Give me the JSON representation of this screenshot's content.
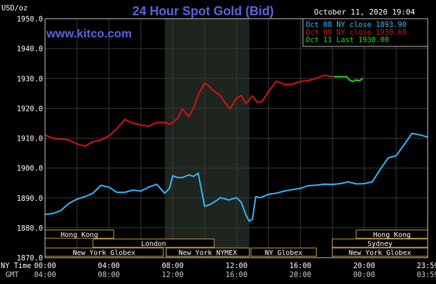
{
  "chart_data": {
    "type": "line",
    "title": "24 Hour Spot Gold (Bid)",
    "source_watermark": "www.kitco.com",
    "ylabel": "USD/oz",
    "datetime": "October 11, 2020 19:04",
    "ylim": [
      1870.0,
      1950.0
    ],
    "y_ticks": [
      "1950.0",
      "1940.0",
      "1930.0",
      "1920.0",
      "1910.0",
      "1900.0",
      "1890.0",
      "1880.0",
      "1870.0"
    ],
    "y_tick_values": [
      1950,
      1940,
      1930,
      1920,
      1910,
      1900,
      1890,
      1880,
      1870
    ],
    "x_row_labels": {
      "ny": "NY Time",
      "gmt": "GMT"
    },
    "x_ticks_ny": [
      "00:00",
      "04:00",
      "08:00",
      "12:00",
      "16:00",
      "20:00",
      "23:59"
    ],
    "x_ticks_gmt": [
      "04:00",
      "08:00",
      "12:00",
      "16:00",
      "20:00",
      "00:00",
      "03:59"
    ],
    "x_tick_hours": [
      0,
      4,
      8,
      12,
      16,
      20,
      23.98
    ],
    "shaded_interval_hours": [
      7.5,
      12.8
    ],
    "grid": true,
    "legend_position": "top-right",
    "series": [
      {
        "name": "Oct 08 NY close 1893.90",
        "color": "#33bbff",
        "x": [
          0,
          0.5,
          1,
          1.5,
          2,
          2.5,
          3,
          3.5,
          4,
          4.5,
          5,
          5.5,
          6,
          6.5,
          7,
          7.5,
          7.8,
          8,
          8.3,
          8.6,
          9,
          9.3,
          9.6,
          10,
          10.3,
          10.6,
          11,
          11.5,
          12,
          12.3,
          12.6,
          12.8,
          13,
          13.2,
          13.5,
          14,
          14.5,
          15,
          15.5,
          16,
          16.5,
          17,
          17.5,
          18,
          18.5,
          19,
          19.5,
          20,
          20.5,
          21,
          21.5,
          22,
          22.5,
          23,
          23.5,
          23.98
        ],
        "y": [
          1884.5,
          1884.8,
          1885.8,
          1888.2,
          1889.6,
          1890.4,
          1891.6,
          1894.2,
          1893.6,
          1891.9,
          1891.9,
          1892.6,
          1892.3,
          1893.6,
          1894.6,
          1891.6,
          1893.2,
          1897.4,
          1896.8,
          1896.8,
          1897.7,
          1897.2,
          1898.3,
          1887.2,
          1887.7,
          1888.6,
          1890.1,
          1889.3,
          1890.1,
          1888.5,
          1884.2,
          1882.2,
          1882.9,
          1890.4,
          1890.1,
          1891.2,
          1891.6,
          1892.3,
          1892.8,
          1893.2,
          1894.1,
          1894.3,
          1894.6,
          1894.5,
          1894.8,
          1895.4,
          1894.7,
          1894.8,
          1895.4,
          1899.5,
          1903.4,
          1904.1,
          1907.8,
          1911.6,
          1911.1,
          1910.4
        ]
      },
      {
        "name": "Oct 09 NY close 1930.60",
        "color": "#e01010",
        "x": [
          0,
          0.5,
          1,
          1.5,
          2,
          2.5,
          3,
          3.5,
          4,
          4.5,
          5,
          5.5,
          6,
          6.5,
          7,
          7.5,
          7.8,
          8,
          8.3,
          8.6,
          9,
          9.3,
          9.6,
          10,
          10.3,
          10.6,
          11,
          11.3,
          11.6,
          12,
          12.3,
          12.6,
          13,
          13.3,
          13.6,
          14,
          14.5,
          15,
          15.5,
          16,
          16.5,
          17,
          17.5,
          18
        ],
        "y": [
          1911.1,
          1910.0,
          1909.7,
          1909.4,
          1908.1,
          1907.3,
          1908.8,
          1909.4,
          1910.8,
          1913.2,
          1916.3,
          1915.0,
          1914.4,
          1914.0,
          1915.3,
          1915.3,
          1914.6,
          1915.3,
          1916.6,
          1919.8,
          1917.2,
          1920.0,
          1924.5,
          1928.5,
          1927.3,
          1925.7,
          1924.2,
          1921.7,
          1919.9,
          1923.4,
          1924.3,
          1921.5,
          1924.2,
          1922.0,
          1922.3,
          1925.6,
          1929.1,
          1928.0,
          1928.1,
          1929.0,
          1929.3,
          1930.1,
          1931.1,
          1930.6
        ]
      },
      {
        "name": "Oct 11 Last 1930.00",
        "color": "#22dd22",
        "x": [
          18.1,
          18.5,
          18.9,
          19.1,
          19.3,
          19.5,
          19.7,
          19.9
        ],
        "y": [
          1930.6,
          1930.6,
          1930.6,
          1929.4,
          1929.0,
          1929.5,
          1929.2,
          1930.0
        ]
      }
    ]
  },
  "sessions": [
    {
      "label": "Hong Kong",
      "row": 0,
      "start": 0.0,
      "end": 4.3
    },
    {
      "label": "London",
      "row": 1,
      "start": 3.0,
      "end": 10.6
    },
    {
      "label": "New York Globex",
      "row": 2,
      "start": 0.0,
      "end": 7.4
    },
    {
      "label": "New York NYMEX",
      "row": 2,
      "start": 7.6,
      "end": 12.8
    },
    {
      "label": "NY Globex",
      "row": 2,
      "start": 12.9,
      "end": 17.0
    },
    {
      "label": "Hong Kong",
      "row": 0,
      "start": 19.5,
      "end": 23.98
    },
    {
      "label": "Sydney",
      "row": 1,
      "start": 18.0,
      "end": 23.98
    },
    {
      "label": "New York Globex",
      "row": 2,
      "start": 18.0,
      "end": 23.98
    }
  ],
  "colors": {
    "background": "#000000",
    "plot_border": "#cccccc",
    "grid": "#3a3a3a",
    "shade": "#1e241e",
    "title": "#5b63e0",
    "watermark": "#5b63e0",
    "session_box": "#c8a24a",
    "text": "#ffffff"
  }
}
